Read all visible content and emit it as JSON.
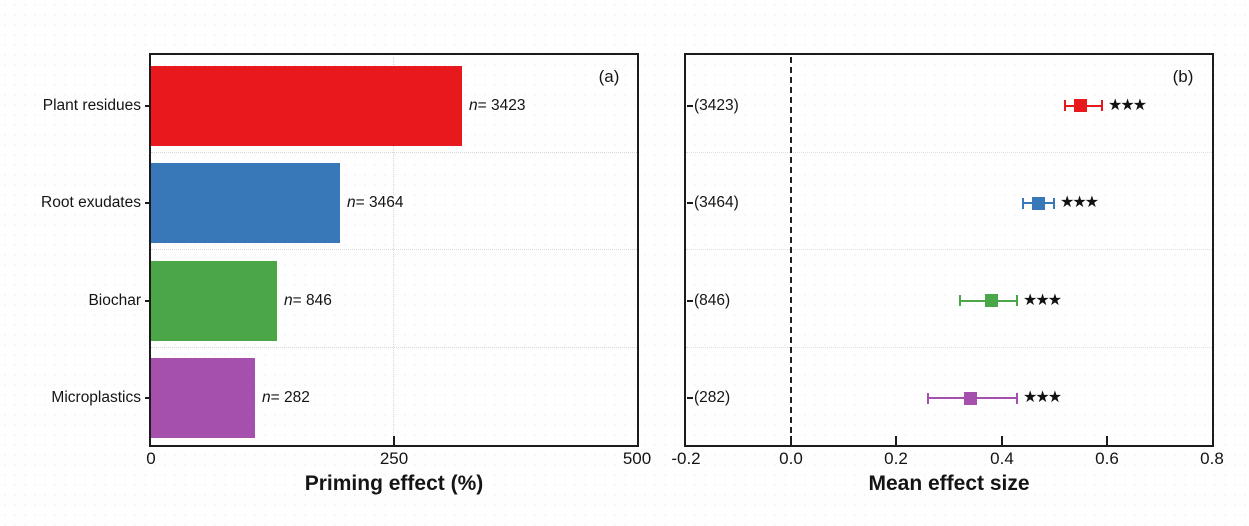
{
  "figure": {
    "background": "#fefefe",
    "text_color": "#141414",
    "frame_color": "#1b1b1b"
  },
  "chart_data": [
    {
      "type": "bar",
      "panel": "(a)",
      "orientation": "horizontal",
      "xlabel": "Priming effect (%)",
      "xlim": [
        0,
        500
      ],
      "xticks": [
        0,
        250,
        500
      ],
      "xtick_labels": [
        "0",
        "250",
        "500"
      ],
      "grid": "faint dotted gridline at 250 and dotted row separators",
      "categories": [
        "Plant residues",
        "Root exudates",
        "Biochar",
        "Microplastics"
      ],
      "values": [
        320,
        194,
        130,
        107
      ],
      "n_symbol": "n",
      "n_labels": [
        "= 3423",
        "= 3464",
        "= 846",
        "= 282"
      ],
      "colors": [
        "#e8191c",
        "#3878b8",
        "#4ba647",
        "#a650ae"
      ]
    },
    {
      "type": "scatter",
      "subtype": "forest-plot",
      "panel": "(b)",
      "xlabel": "Mean effect size",
      "xlim": [
        -0.2,
        0.8
      ],
      "xticks": [
        -0.2,
        0.0,
        0.2,
        0.4,
        0.6,
        0.8
      ],
      "xtick_labels": [
        "-0.2",
        "0.0",
        "0.2",
        "0.4",
        "0.6",
        "0.8"
      ],
      "zero_line": 0.0,
      "categories": [
        "(3423)",
        "(3464)",
        "(846)",
        "(282)"
      ],
      "means": [
        0.55,
        0.47,
        0.38,
        0.34
      ],
      "ci_low": [
        0.52,
        0.44,
        0.32,
        0.26
      ],
      "ci_high": [
        0.59,
        0.5,
        0.43,
        0.43
      ],
      "significance": [
        "★★★",
        "★★★",
        "★★★",
        "★★★"
      ],
      "colors": [
        "#e8191c",
        "#3878b8",
        "#4ba647",
        "#a650ae"
      ]
    }
  ]
}
